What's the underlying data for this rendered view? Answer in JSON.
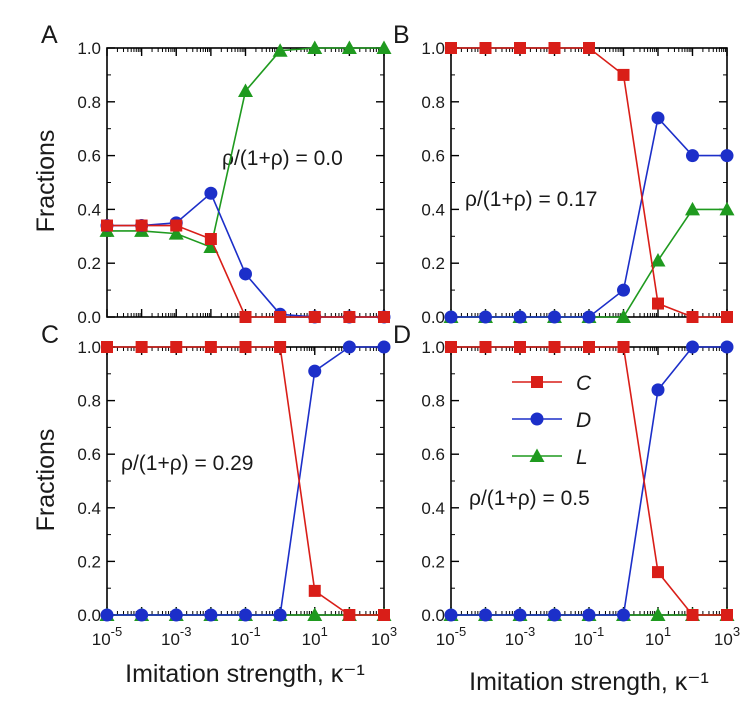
{
  "colors": {
    "C": "#d91e18",
    "D": "#1c2fc9",
    "L": "#1f9a1f"
  },
  "chart_data": {
    "type": "line",
    "xlabel": "Imitation strength, κ⁻¹",
    "ylabel": "Fractions",
    "xscale": "log",
    "xlim_exponent": [
      -5,
      3
    ],
    "xticks": [
      {
        "base": "10",
        "exp": "-5",
        "value": 1e-05
      },
      {
        "base": "10",
        "exp": "-3",
        "value": 0.001
      },
      {
        "base": "10",
        "exp": "-1",
        "value": 0.1
      },
      {
        "base": "10",
        "exp": "1",
        "value": 10
      },
      {
        "base": "10",
        "exp": "3",
        "value": 1000
      }
    ],
    "yticks": [
      "0.0",
      "0.2",
      "0.4",
      "0.6",
      "0.8",
      "1.0"
    ],
    "ylim": [
      0,
      1
    ],
    "x": [
      1e-05,
      0.0001,
      0.001,
      0.01,
      0.1,
      1,
      10,
      100,
      1000
    ],
    "legend": {
      "panel": "D",
      "entries": [
        {
          "key": "C",
          "label": "C",
          "marker": "square"
        },
        {
          "key": "D",
          "label": "D",
          "marker": "circle"
        },
        {
          "key": "L",
          "label": "L",
          "marker": "triangle"
        }
      ]
    },
    "panels": [
      {
        "id": "A",
        "letter": "A",
        "annotation": "ρ/(1+ρ) = 0.0",
        "series": [
          {
            "name": "C",
            "key": "C",
            "values": [
              0.34,
              0.34,
              0.34,
              0.29,
              0.0,
              0.0,
              0.0,
              0.0,
              0.0
            ]
          },
          {
            "name": "D",
            "key": "D",
            "values": [
              0.34,
              0.34,
              0.35,
              0.46,
              0.16,
              0.01,
              0.0,
              0.0,
              0.0
            ]
          },
          {
            "name": "L",
            "key": "L",
            "values": [
              0.32,
              0.32,
              0.31,
              0.26,
              0.84,
              0.99,
              1.0,
              1.0,
              1.0
            ]
          }
        ]
      },
      {
        "id": "B",
        "letter": "B",
        "annotation": "ρ/(1+ρ) = 0.17",
        "series": [
          {
            "name": "C",
            "key": "C",
            "values": [
              1.0,
              1.0,
              1.0,
              1.0,
              1.0,
              0.9,
              0.05,
              0.0,
              0.0
            ]
          },
          {
            "name": "D",
            "key": "D",
            "values": [
              0.0,
              0.0,
              0.0,
              0.0,
              0.0,
              0.1,
              0.74,
              0.6,
              0.6
            ]
          },
          {
            "name": "L",
            "key": "L",
            "values": [
              0.0,
              0.0,
              0.0,
              0.0,
              0.0,
              0.0,
              0.21,
              0.4,
              0.4
            ]
          }
        ]
      },
      {
        "id": "C",
        "letter": "C",
        "annotation": "ρ/(1+ρ) = 0.29",
        "series": [
          {
            "name": "C",
            "key": "C",
            "values": [
              1.0,
              1.0,
              1.0,
              1.0,
              1.0,
              1.0,
              0.09,
              0.0,
              0.0
            ]
          },
          {
            "name": "D",
            "key": "D",
            "values": [
              0.0,
              0.0,
              0.0,
              0.0,
              0.0,
              0.0,
              0.91,
              1.0,
              1.0
            ]
          },
          {
            "name": "L",
            "key": "L",
            "values": [
              0.0,
              0.0,
              0.0,
              0.0,
              0.0,
              0.0,
              0.0,
              0.0,
              0.0
            ]
          }
        ]
      },
      {
        "id": "D",
        "letter": "D",
        "annotation": "ρ/(1+ρ) = 0.5",
        "series": [
          {
            "name": "C",
            "key": "C",
            "values": [
              1.0,
              1.0,
              1.0,
              1.0,
              1.0,
              1.0,
              0.16,
              0.0,
              0.0
            ]
          },
          {
            "name": "D",
            "key": "D",
            "values": [
              0.0,
              0.0,
              0.0,
              0.0,
              0.0,
              0.0,
              0.84,
              1.0,
              1.0
            ]
          },
          {
            "name": "L",
            "key": "L",
            "values": [
              0.0,
              0.0,
              0.0,
              0.0,
              0.0,
              0.0,
              0.0,
              0.0,
              0.0
            ]
          }
        ]
      }
    ]
  }
}
